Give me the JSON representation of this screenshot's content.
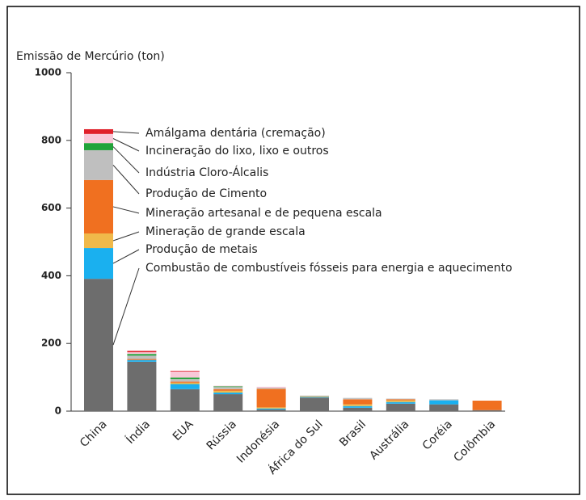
{
  "chart_data": {
    "type": "stacked_bar",
    "y_axis_label": "Emissão de Mercúrio (ton)",
    "categories": [
      "China",
      "Índia",
      "EUA",
      "Rússia",
      "Indonésia",
      "África do Sul",
      "Brasil",
      "Austrália",
      "Coréia",
      "Colômbia"
    ],
    "series": [
      {
        "name": "Combustão de combustíveis fósseis para energia e aquecimento",
        "color": "#6d6d6d",
        "values": [
          391,
          146,
          65,
          50,
          5,
          40,
          10,
          22,
          20,
          3
        ]
      },
      {
        "name": "Produção de metais",
        "color": "#1ab0ef",
        "values": [
          91,
          5,
          15,
          5,
          3,
          2,
          5,
          5,
          12,
          0
        ]
      },
      {
        "name": "Mineração de grande escala",
        "color": "#f0b94a",
        "values": [
          43,
          0,
          4,
          5,
          3,
          2,
          5,
          5,
          0,
          0
        ]
      },
      {
        "name": "Mineração artesanal e de pequena escala",
        "color": "#f07020",
        "values": [
          158,
          3,
          3,
          5,
          55,
          0,
          15,
          3,
          0,
          28
        ]
      },
      {
        "name": "Produção de Cimento",
        "color": "#bfbfbf",
        "values": [
          88,
          10,
          8,
          6,
          3,
          2,
          4,
          2,
          3,
          0
        ]
      },
      {
        "name": "Indústria Cloro-Álcalis",
        "color": "#22a33a",
        "values": [
          21,
          5,
          4,
          2,
          0,
          0,
          0,
          0,
          0,
          0
        ]
      },
      {
        "name": "Incineração do lixo, lixo e outros",
        "color": "#f8c8d8",
        "values": [
          27,
          5,
          18,
          2,
          3,
          0,
          0,
          0,
          0,
          0
        ]
      },
      {
        "name": "Amálgama dentária (cremação)",
        "color": "#e0202a",
        "values": [
          14,
          4,
          2,
          0,
          0,
          0,
          0,
          0,
          0,
          0
        ]
      }
    ],
    "ylim": [
      0,
      1000
    ],
    "yticks": [
      0,
      200,
      400,
      600,
      800,
      1000
    ]
  }
}
